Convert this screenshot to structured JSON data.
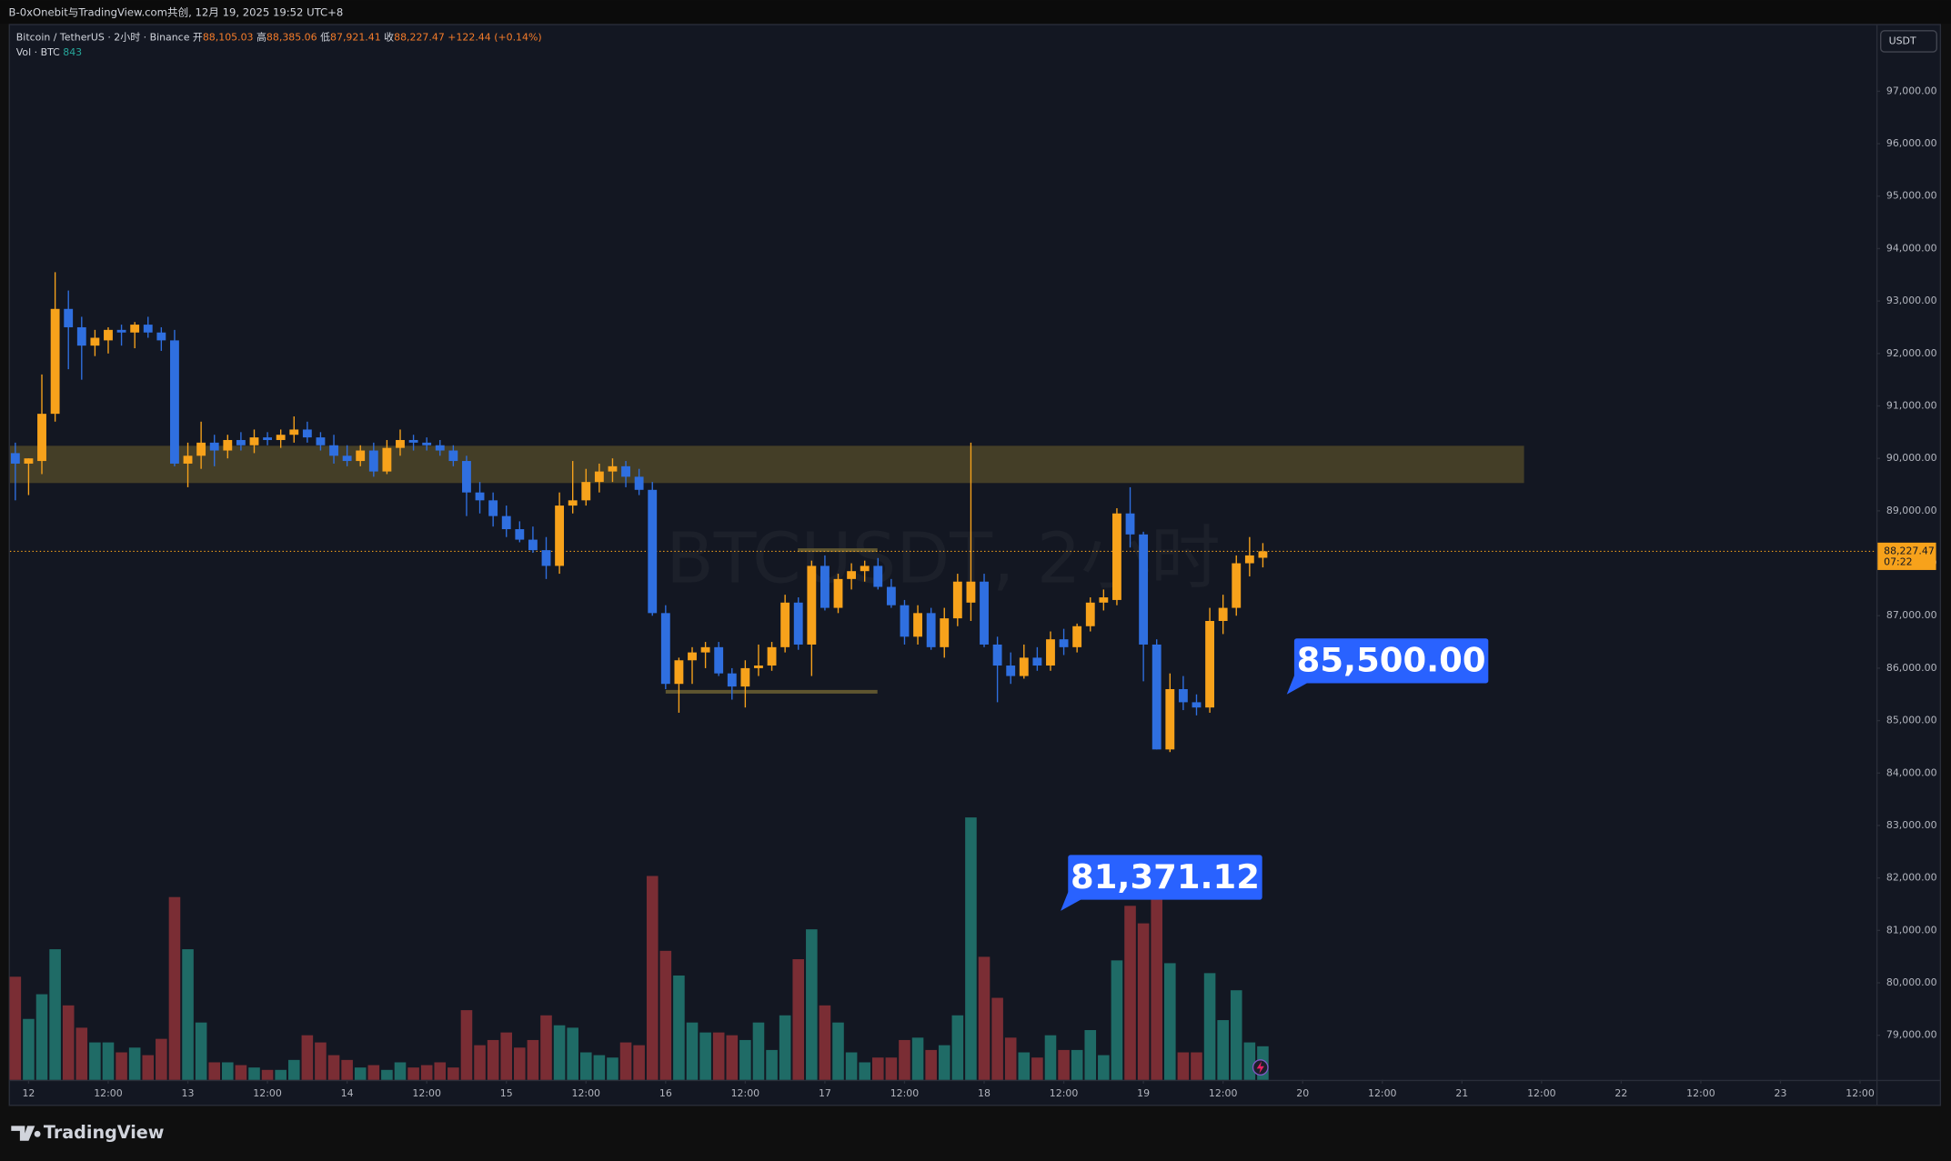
{
  "title_bar": "B-0xOnebit与TradingView.com共创, 12月 19, 2025 19:52 UTC+8",
  "branding": "TradingView",
  "chart_data": {
    "type": "candlestick",
    "symbol": "Bitcoin / TetherUS · 2小时 · Binance",
    "ohlc_legend": [
      {
        "label": "开",
        "text": "88,105.03"
      },
      {
        "label": "高",
        "text": "88,385.06"
      },
      {
        "label": "低",
        "text": "87,921.41"
      },
      {
        "label": "收",
        "text": "88,227.47"
      }
    ],
    "change": "+122.44 (+0.14%)",
    "volume_legend": "Vol · BTC",
    "watermark": "BTCUSDT, 2小时",
    "currency": "USDT",
    "countdown": "07:22",
    "last_price": {
      "value": 88227.47,
      "label": "88,227.47"
    },
    "up_color": "#f7a21b",
    "down_color": "#2f6fe0",
    "volume_up_color": "#1f6b66",
    "volume_down_color": "#7a2d34",
    "grid": false,
    "x": [
      11.9167,
      12,
      12.0833,
      12.1667,
      12.25,
      12.3333,
      12.4167,
      12.5,
      12.5833,
      12.6667,
      12.75,
      12.8333,
      12.9167,
      13,
      13.0833,
      13.1667,
      13.25,
      13.3333,
      13.4167,
      13.5,
      13.5833,
      13.6667,
      13.75,
      13.8333,
      13.9167,
      14,
      14.0833,
      14.1667,
      14.25,
      14.3333,
      14.4167,
      14.5,
      14.5833,
      14.6667,
      14.75,
      14.8333,
      14.9167,
      15,
      15.0833,
      15.1667,
      15.25,
      15.3333,
      15.4167,
      15.5,
      15.5833,
      15.6667,
      15.75,
      15.8333,
      15.9167,
      16,
      16.0833,
      16.1667,
      16.25,
      16.3333,
      16.4167,
      16.5,
      16.5833,
      16.6667,
      16.75,
      16.8333,
      16.9167,
      17,
      17.0833,
      17.1667,
      17.25,
      17.3333,
      17.4167,
      17.5,
      17.5833,
      17.6667,
      17.75,
      17.8333,
      17.9167,
      18,
      18.0833,
      18.1667,
      18.25,
      18.3333,
      18.4167,
      18.5,
      18.5833,
      18.6667,
      18.75,
      18.8333,
      18.9167,
      19,
      19.0833,
      19.1667,
      19.25,
      19.3333,
      19.4167,
      19.5,
      19.5833,
      19.6667,
      19.75
    ],
    "open": [
      90100,
      89900,
      89950,
      90850,
      92850,
      92500,
      92150,
      92250,
      92450,
      92400,
      92550,
      92400,
      92250,
      89900,
      90050,
      90300,
      90150,
      90350,
      90250,
      90400,
      90350,
      90450,
      90550,
      90400,
      90250,
      90050,
      89950,
      90150,
      89750,
      90200,
      90350,
      90300,
      90250,
      90150,
      89950,
      89350,
      89200,
      88900,
      88650,
      88450,
      88250,
      87950,
      89100,
      89200,
      89550,
      89750,
      89850,
      89650,
      89400,
      87050,
      85700,
      86150,
      86300,
      86400,
      85900,
      85650,
      86000,
      86050,
      86400,
      87250,
      86450,
      87950,
      87150,
      87700,
      87850,
      87950,
      87550,
      87200,
      86600,
      87050,
      86400,
      86950,
      87250,
      87650,
      86450,
      86050,
      85850,
      86200,
      86050,
      86550,
      86400,
      86800,
      87250,
      87300,
      88950,
      88550,
      86450,
      84450,
      85600,
      85350,
      85250,
      86900,
      87150,
      88000,
      88105.03
    ],
    "high": [
      90300,
      90000,
      91600,
      93550,
      93200,
      92700,
      92450,
      92500,
      92550,
      92600,
      92700,
      92500,
      92450,
      90300,
      90700,
      90450,
      90450,
      90500,
      90550,
      90500,
      90550,
      90800,
      90700,
      90500,
      90450,
      90250,
      90250,
      90300,
      90350,
      90550,
      90450,
      90400,
      90350,
      90250,
      90050,
      89550,
      89350,
      89100,
      88800,
      88700,
      88500,
      89350,
      89950,
      89800,
      89900,
      90000,
      89950,
      89800,
      89550,
      87200,
      86200,
      86400,
      86500,
      86500,
      86000,
      86150,
      86450,
      86500,
      87400,
      87350,
      88050,
      88150,
      87800,
      88000,
      88050,
      88100,
      87700,
      87300,
      87200,
      87150,
      87150,
      87800,
      90300,
      87800,
      86600,
      86300,
      86450,
      86400,
      86700,
      86750,
      86850,
      87350,
      87500,
      89050,
      89450,
      88600,
      86550,
      85900,
      85850,
      85500,
      87150,
      87400,
      88150,
      88500,
      88385.06
    ],
    "low": [
      89200,
      89300,
      89700,
      90700,
      91700,
      91500,
      91950,
      92000,
      92150,
      92100,
      92300,
      92050,
      89850,
      89450,
      89800,
      89850,
      90000,
      90150,
      90100,
      90250,
      90200,
      90300,
      90300,
      90150,
      89900,
      89850,
      89850,
      89650,
      89700,
      90050,
      90150,
      90150,
      90050,
      89850,
      88900,
      88950,
      88700,
      88500,
      88400,
      88200,
      87700,
      87800,
      88950,
      89100,
      89350,
      89550,
      89450,
      89300,
      87000,
      85600,
      85150,
      85700,
      86000,
      85850,
      85400,
      85250,
      85850,
      85950,
      86300,
      86350,
      85850,
      87100,
      87050,
      87500,
      87650,
      87500,
      87150,
      86450,
      86450,
      86350,
      86200,
      86800,
      86900,
      86400,
      85350,
      85700,
      85800,
      85950,
      85950,
      86250,
      86300,
      86700,
      87100,
      87200,
      88300,
      85750,
      84450,
      84400,
      85200,
      85100,
      85150,
      86650,
      87000,
      87750,
      87921.41
    ],
    "close": [
      89900,
      90000,
      90850,
      92850,
      92500,
      92150,
      92300,
      92450,
      92400,
      92550,
      92400,
      92250,
      89900,
      90050,
      90300,
      90150,
      90350,
      90250,
      90400,
      90350,
      90450,
      90550,
      90400,
      90250,
      90050,
      89950,
      90150,
      89750,
      90200,
      90350,
      90300,
      90250,
      90150,
      89950,
      89350,
      89200,
      88900,
      88650,
      88450,
      88250,
      87950,
      89100,
      89200,
      89550,
      89750,
      89850,
      89650,
      89400,
      87050,
      85700,
      86150,
      86300,
      86400,
      85900,
      85650,
      86000,
      86050,
      86400,
      87250,
      86450,
      87950,
      87150,
      87700,
      87850,
      87950,
      87550,
      87200,
      86600,
      87050,
      86400,
      86950,
      87650,
      87650,
      86450,
      86050,
      85850,
      86200,
      86050,
      86550,
      86400,
      86800,
      87250,
      87350,
      88950,
      88550,
      86450,
      84450,
      85600,
      85350,
      85250,
      86900,
      87150,
      88000,
      88150,
      88227.47
    ],
    "volume": [
      2590,
      1530,
      2150,
      3280,
      1870,
      1310,
      940,
      940,
      690,
      810,
      620,
      1030,
      4590,
      3280,
      1440,
      440,
      440,
      370,
      310,
      250,
      250,
      500,
      1120,
      940,
      620,
      500,
      310,
      370,
      250,
      440,
      310,
      370,
      440,
      310,
      1750,
      870,
      1000,
      1190,
      810,
      1000,
      1620,
      1370,
      1310,
      690,
      620,
      560,
      940,
      870,
      5120,
      3240,
      2620,
      1440,
      1190,
      1190,
      1120,
      1000,
      1440,
      750,
      1620,
      3030,
      3780,
      1870,
      1440,
      690,
      440,
      560,
      560,
      1000,
      1060,
      750,
      870,
      1620,
      6590,
      3090,
      2060,
      1060,
      690,
      560,
      1120,
      750,
      750,
      1250,
      620,
      3000,
      4370,
      3930,
      4560,
      2930,
      690,
      690,
      2680,
      1500,
      2250,
      940,
      843
    ],
    "xlim": [
      11.883,
      23.602
    ],
    "xticks": [
      12,
      {
        "value": 12.5,
        "label": "12:00"
      },
      13,
      {
        "value": 13.5,
        "label": "12:00"
      },
      14,
      {
        "value": 14.5,
        "label": "12:00"
      },
      15,
      {
        "value": 15.5,
        "label": "12:00"
      },
      16,
      {
        "value": 16.5,
        "label": "12:00"
      },
      17,
      {
        "value": 17.5,
        "label": "12:00"
      },
      18,
      {
        "value": 18.5,
        "label": "12:00"
      },
      19,
      {
        "value": 19.5,
        "label": "12:00"
      },
      20,
      {
        "value": 20.5,
        "label": "12:00"
      },
      21,
      {
        "value": 21.5,
        "label": "12:00"
      },
      22,
      {
        "value": 22.5,
        "label": "12:00"
      },
      23,
      {
        "value": 23.5,
        "label": "12:00"
      }
    ],
    "ylim": [
      78150,
      98260
    ],
    "yticks": [
      {
        "value": 79000,
        "label": "79,000.00"
      },
      {
        "value": 80000,
        "label": "80,000.00"
      },
      {
        "value": 81000,
        "label": "81,000.00"
      },
      {
        "value": 82000,
        "label": "82,000.00"
      },
      {
        "value": 83000,
        "label": "83,000.00"
      },
      {
        "value": 84000,
        "label": "84,000.00"
      },
      {
        "value": 85000,
        "label": "85,000.00"
      },
      {
        "value": 86000,
        "label": "86,000.00"
      },
      {
        "value": 87000,
        "label": "87,000.00"
      },
      {
        "value": 88000,
        "label": "88,000.00"
      },
      {
        "value": 89000,
        "label": "89,000.00"
      },
      {
        "value": 90000,
        "label": "90,000.00"
      },
      {
        "value": 91000,
        "label": "91,000.00"
      },
      {
        "value": 92000,
        "label": "92,000.00"
      },
      {
        "value": 93000,
        "label": "93,000.00"
      },
      {
        "value": 94000,
        "label": "94,000.00"
      },
      {
        "value": 95000,
        "label": "95,000.00"
      },
      {
        "value": 96000,
        "label": "96,000.00"
      },
      {
        "value": 97000,
        "label": "97,000.00"
      }
    ],
    "zones": [
      {
        "x": [
          11.883,
          21.39
        ],
        "y": [
          89530,
          90240
        ],
        "color": "#4d4528"
      }
    ],
    "levels": [
      {
        "x": [
          16.0,
          17.33
        ],
        "value": 85550,
        "color": "#5f5630"
      },
      {
        "x": [
          16.83,
          17.33
        ],
        "value": 88250,
        "color": "#5f5630"
      }
    ],
    "callouts": [
      {
        "label": "85,500.00",
        "value": 85500,
        "x": 19.9,
        "color": "#2962ff"
      },
      {
        "label": "81,371.12",
        "value": 81371.12,
        "x": 18.48,
        "color": "#2962ff"
      }
    ]
  }
}
